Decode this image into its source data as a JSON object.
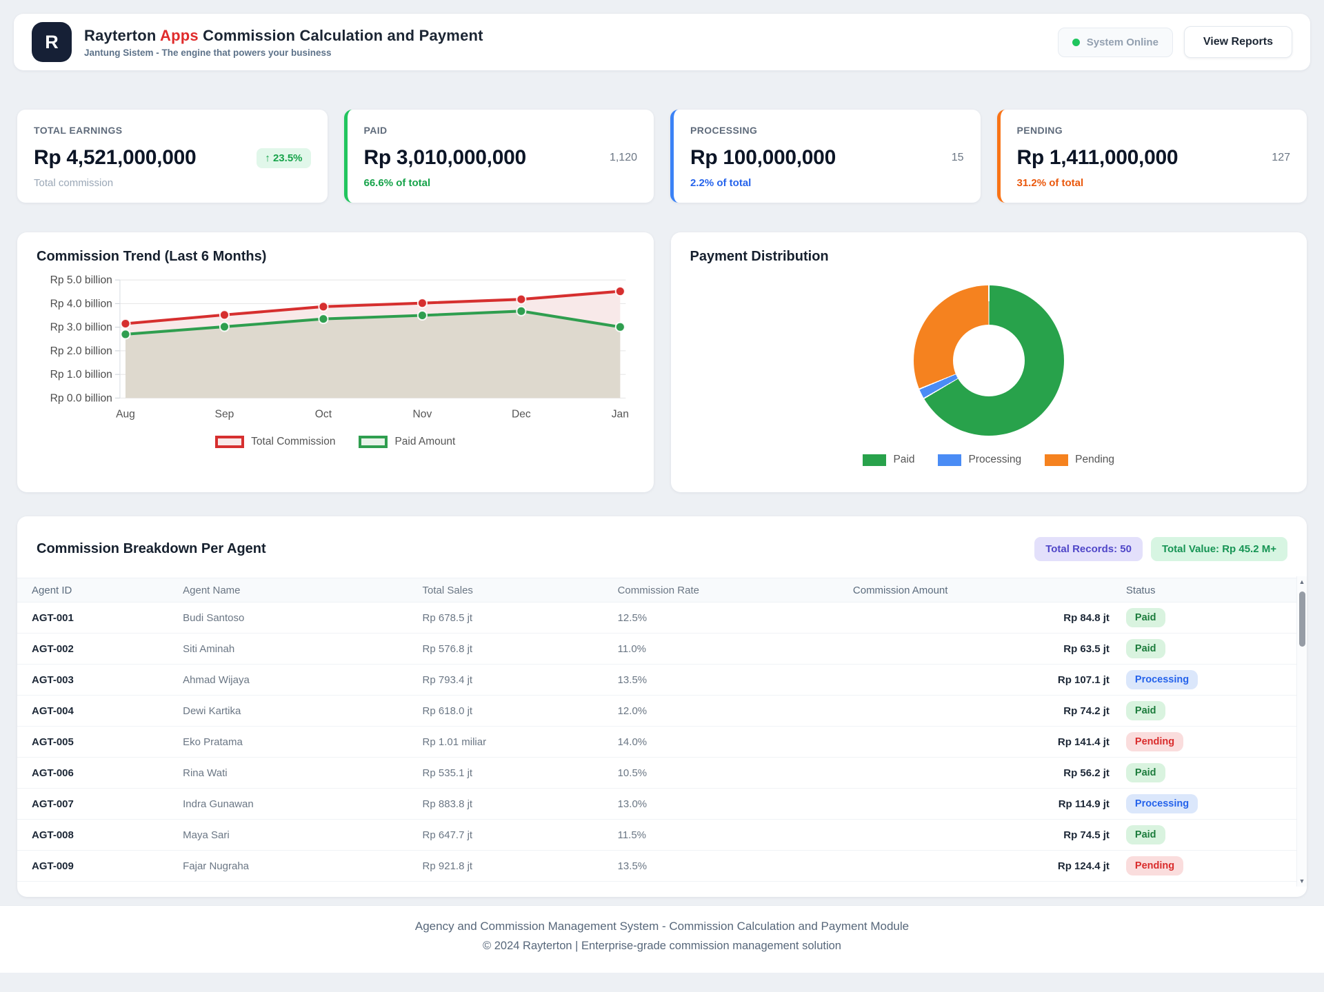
{
  "header": {
    "logo_letter": "R",
    "title_brand": "Rayterton",
    "title_accent": "Apps",
    "title_rest": "Commission Calculation and Payment",
    "subtitle": "Jantung Sistem - The engine that powers your business",
    "status_label": "System Online",
    "status_color": "#1fc55e",
    "view_reports_label": "View Reports"
  },
  "stats": [
    {
      "label": "TOTAL EARNINGS",
      "value": "Rp 4,521,000,000",
      "badge": "↑ 23.5%",
      "count": "",
      "sub": "Total commission",
      "accent_color": "",
      "sub_color": ""
    },
    {
      "label": "PAID",
      "value": "Rp 3,010,000,000",
      "badge": "",
      "count": "1,120",
      "sub": "66.6% of total",
      "accent_color": "#22c55e",
      "sub_color": "#16a34a"
    },
    {
      "label": "PROCESSING",
      "value": "Rp 100,000,000",
      "badge": "",
      "count": "15",
      "sub": "2.2% of total",
      "accent_color": "#3b82f6",
      "sub_color": "#2563eb"
    },
    {
      "label": "PENDING",
      "value": "Rp 1,411,000,000",
      "badge": "",
      "count": "127",
      "sub": "31.2% of total",
      "accent_color": "#f97316",
      "sub_color": "#ea580c"
    }
  ],
  "chart_data": [
    {
      "id": "commission_trend",
      "type": "line",
      "title": "Commission Trend (Last 6 Months)",
      "x": [
        "Aug",
        "Sep",
        "Oct",
        "Nov",
        "Dec",
        "Jan"
      ],
      "series": [
        {
          "name": "Total Commission",
          "color": "#d62f2f",
          "area_fill": "#f8e9e9",
          "legend_fill": "#f8e9e9",
          "values_billion": [
            3.15,
            3.52,
            3.87,
            4.02,
            4.18,
            4.52
          ]
        },
        {
          "name": "Paid Amount",
          "color": "#2f9e4f",
          "area_fill": "#ded9ce",
          "legend_fill": "#e9f3ea",
          "values_billion": [
            2.7,
            3.02,
            3.35,
            3.5,
            3.68,
            3.01
          ]
        }
      ],
      "ylabel_format": "Rp {v} billion",
      "yticks": [
        0.0,
        1.0,
        2.0,
        3.0,
        4.0,
        5.0
      ],
      "ylim": [
        0,
        5
      ],
      "grid": true,
      "legend_position": "bottom"
    },
    {
      "id": "payment_distribution",
      "type": "pie",
      "donut": true,
      "title": "Payment Distribution",
      "labels": [
        "Paid",
        "Processing",
        "Pending"
      ],
      "values_percent": [
        66.6,
        2.2,
        31.2
      ],
      "colors": [
        "#28a24b",
        "#4a8cf5",
        "#f5821f"
      ],
      "legend_position": "bottom"
    }
  ],
  "table": {
    "title": "Commission Breakdown Per Agent",
    "records_badge": "Total Records: 50",
    "value_badge": "Total Value: Rp 45.2 M+",
    "columns": [
      "Agent ID",
      "Agent Name",
      "Total Sales",
      "Commission Rate",
      "Commission Amount",
      "Status"
    ],
    "rows": [
      {
        "agent_id": "AGT-001",
        "agent_name": "Budi Santoso",
        "total_sales": "Rp 678.5 jt",
        "commission_rate": "12.5%",
        "commission_amount": "Rp 84.8 jt",
        "status": "Paid"
      },
      {
        "agent_id": "AGT-002",
        "agent_name": "Siti Aminah",
        "total_sales": "Rp 576.8 jt",
        "commission_rate": "11.0%",
        "commission_amount": "Rp 63.5 jt",
        "status": "Paid"
      },
      {
        "agent_id": "AGT-003",
        "agent_name": "Ahmad Wijaya",
        "total_sales": "Rp 793.4 jt",
        "commission_rate": "13.5%",
        "commission_amount": "Rp 107.1 jt",
        "status": "Processing"
      },
      {
        "agent_id": "AGT-004",
        "agent_name": "Dewi Kartika",
        "total_sales": "Rp 618.0 jt",
        "commission_rate": "12.0%",
        "commission_amount": "Rp 74.2 jt",
        "status": "Paid"
      },
      {
        "agent_id": "AGT-005",
        "agent_name": "Eko Pratama",
        "total_sales": "Rp 1.01 miliar",
        "commission_rate": "14.0%",
        "commission_amount": "Rp 141.4 jt",
        "status": "Pending"
      },
      {
        "agent_id": "AGT-006",
        "agent_name": "Rina Wati",
        "total_sales": "Rp 535.1 jt",
        "commission_rate": "10.5%",
        "commission_amount": "Rp 56.2 jt",
        "status": "Paid"
      },
      {
        "agent_id": "AGT-007",
        "agent_name": "Indra Gunawan",
        "total_sales": "Rp 883.8 jt",
        "commission_rate": "13.0%",
        "commission_amount": "Rp 114.9 jt",
        "status": "Processing"
      },
      {
        "agent_id": "AGT-008",
        "agent_name": "Maya Sari",
        "total_sales": "Rp 647.7 jt",
        "commission_rate": "11.5%",
        "commission_amount": "Rp 74.5 jt",
        "status": "Paid"
      },
      {
        "agent_id": "AGT-009",
        "agent_name": "Fajar Nugraha",
        "total_sales": "Rp 921.8 jt",
        "commission_rate": "13.5%",
        "commission_amount": "Rp 124.4 jt",
        "status": "Pending"
      }
    ],
    "status_styles": {
      "Paid": {
        "bg": "#d9f3df",
        "text": "#1c7c3c"
      },
      "Processing": {
        "bg": "#dbe7fb",
        "text": "#2563eb"
      },
      "Pending": {
        "bg": "#fadddd",
        "text": "#d92c2c"
      }
    }
  },
  "footer": {
    "line1": "Agency and Commission Management System - Commission Calculation and Payment Module",
    "line2": "© 2024 Rayterton | Enterprise-grade commission management solution"
  }
}
